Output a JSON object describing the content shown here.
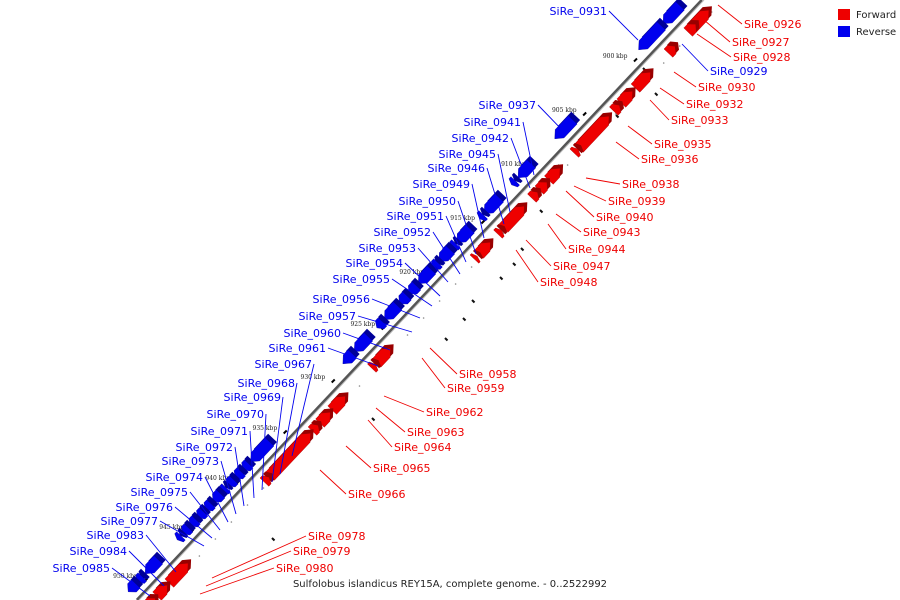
{
  "caption": "Sulfolobus islandicus REY15A, complete genome. - 0..2522992",
  "legend": [
    {
      "label": "Forward",
      "color": "#ee0000"
    },
    {
      "label": "Reverse",
      "color": "#0000ee"
    }
  ],
  "colors": {
    "forward": "#ee0000",
    "reverse": "#0000ee",
    "axis": "#555555"
  },
  "ticks": [
    "900 kbp",
    "905 kbp",
    "910 kbp",
    "915 kbp",
    "920 kbp",
    "925 kbp",
    "930 kbp",
    "935 kbp",
    "940 kbp",
    "945 kbp",
    "950 kbp"
  ],
  "genes": [
    {
      "name": "SiRe_0926",
      "strand": "forward"
    },
    {
      "name": "SiRe_0927",
      "strand": "forward"
    },
    {
      "name": "SiRe_0928",
      "strand": "forward"
    },
    {
      "name": "SiRe_0929",
      "strand": "reverse"
    },
    {
      "name": "SiRe_0930",
      "strand": "forward"
    },
    {
      "name": "SiRe_0931",
      "strand": "reverse"
    },
    {
      "name": "SiRe_0932",
      "strand": "forward"
    },
    {
      "name": "SiRe_0933",
      "strand": "forward"
    },
    {
      "name": "SiRe_0935",
      "strand": "forward"
    },
    {
      "name": "SiRe_0936",
      "strand": "forward"
    },
    {
      "name": "SiRe_0937",
      "strand": "reverse"
    },
    {
      "name": "SiRe_0938",
      "strand": "forward"
    },
    {
      "name": "SiRe_0939",
      "strand": "forward"
    },
    {
      "name": "SiRe_0940",
      "strand": "forward"
    },
    {
      "name": "SiRe_0941",
      "strand": "reverse"
    },
    {
      "name": "SiRe_0942",
      "strand": "reverse"
    },
    {
      "name": "SiRe_0943",
      "strand": "forward"
    },
    {
      "name": "SiRe_0944",
      "strand": "forward"
    },
    {
      "name": "SiRe_0945",
      "strand": "reverse"
    },
    {
      "name": "SiRe_0946",
      "strand": "reverse"
    },
    {
      "name": "SiRe_0947",
      "strand": "forward"
    },
    {
      "name": "SiRe_0948",
      "strand": "forward"
    },
    {
      "name": "SiRe_0949",
      "strand": "reverse"
    },
    {
      "name": "SiRe_0950",
      "strand": "reverse"
    },
    {
      "name": "SiRe_0951",
      "strand": "reverse"
    },
    {
      "name": "SiRe_0952",
      "strand": "reverse"
    },
    {
      "name": "SiRe_0953",
      "strand": "reverse"
    },
    {
      "name": "SiRe_0954",
      "strand": "reverse"
    },
    {
      "name": "SiRe_0955",
      "strand": "reverse"
    },
    {
      "name": "SiRe_0956",
      "strand": "reverse"
    },
    {
      "name": "SiRe_0957",
      "strand": "reverse"
    },
    {
      "name": "SiRe_0958",
      "strand": "forward"
    },
    {
      "name": "SiRe_0959",
      "strand": "forward"
    },
    {
      "name": "SiRe_0960",
      "strand": "reverse"
    },
    {
      "name": "SiRe_0961",
      "strand": "reverse"
    },
    {
      "name": "SiRe_0962",
      "strand": "forward"
    },
    {
      "name": "SiRe_0963",
      "strand": "forward"
    },
    {
      "name": "SiRe_0964",
      "strand": "forward"
    },
    {
      "name": "SiRe_0965",
      "strand": "forward"
    },
    {
      "name": "SiRe_0966",
      "strand": "forward"
    },
    {
      "name": "SiRe_0967",
      "strand": "reverse"
    },
    {
      "name": "SiRe_0968",
      "strand": "reverse"
    },
    {
      "name": "SiRe_0969",
      "strand": "reverse"
    },
    {
      "name": "SiRe_0970",
      "strand": "reverse"
    },
    {
      "name": "SiRe_0971",
      "strand": "reverse"
    },
    {
      "name": "SiRe_0972",
      "strand": "reverse"
    },
    {
      "name": "SiRe_0973",
      "strand": "reverse"
    },
    {
      "name": "SiRe_0974",
      "strand": "reverse"
    },
    {
      "name": "SiRe_0975",
      "strand": "reverse"
    },
    {
      "name": "SiRe_0976",
      "strand": "reverse"
    },
    {
      "name": "SiRe_0977",
      "strand": "reverse"
    },
    {
      "name": "SiRe_0978",
      "strand": "forward"
    },
    {
      "name": "SiRe_0979",
      "strand": "forward"
    },
    {
      "name": "SiRe_0980",
      "strand": "forward"
    },
    {
      "name": "SiRe_0983",
      "strand": "reverse"
    },
    {
      "name": "SiRe_0984",
      "strand": "reverse"
    },
    {
      "name": "SiRe_0985",
      "strand": "reverse"
    }
  ]
}
